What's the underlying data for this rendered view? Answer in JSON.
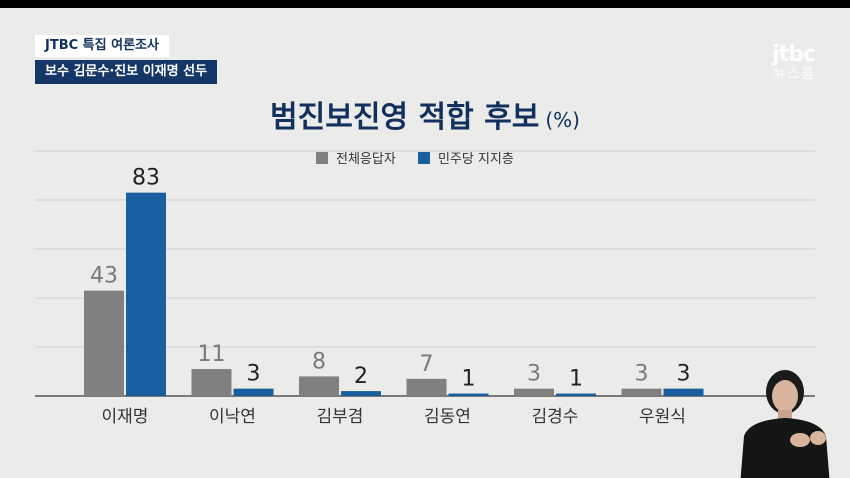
{
  "header": {
    "tag_primary": "JTBC 특집 여론조사",
    "tag_secondary": "보수 김문수·진보 이재명 선두"
  },
  "logo": {
    "line1": "jtbc",
    "line2": "뉴스룸"
  },
  "colors": {
    "background": "#ebebea",
    "series_all": "#808080",
    "series_dem": "#1a5fa0",
    "title": "#12305e"
  },
  "chart_data": {
    "type": "bar",
    "title": "범진보진영 적합 후보",
    "unit": "(%)",
    "categories": [
      "이재명",
      "이낙연",
      "김부겸",
      "김동연",
      "김경수",
      "우원식"
    ],
    "series": [
      {
        "name": "전체응답자",
        "values": [
          43,
          11,
          8,
          7,
          3,
          3
        ]
      },
      {
        "name": "민주당 지지층",
        "values": [
          83,
          3,
          2,
          1,
          1,
          3
        ]
      }
    ],
    "ylim": [
      0,
      100
    ],
    "grid": true,
    "legend_position": "top-center"
  }
}
